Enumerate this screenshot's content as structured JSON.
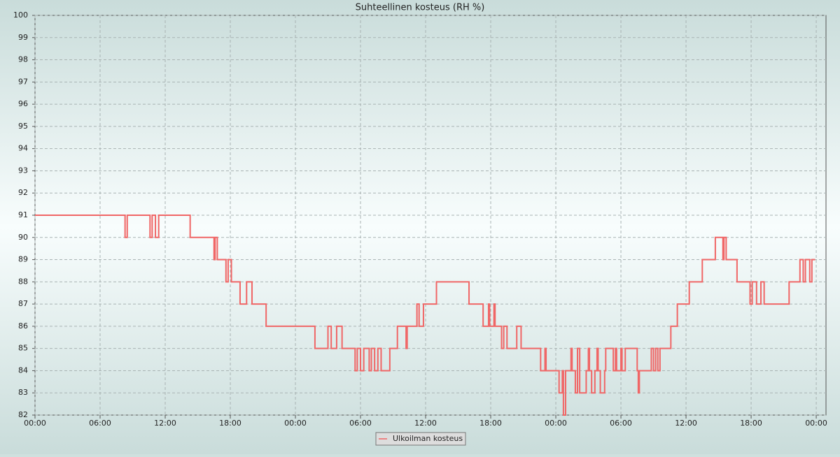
{
  "chart_data": {
    "type": "line",
    "step": true,
    "title": "Suhteellinen kosteus (RH %)",
    "x": [
      0.0,
      8.3,
      8.5,
      10.6,
      10.8,
      11.1,
      11.4,
      14.3,
      16.5,
      16.6,
      16.8,
      17.6,
      17.8,
      18.1,
      18.9,
      19.5,
      20.0,
      21.3,
      25.8,
      27.0,
      27.3,
      27.8,
      28.3,
      29.5,
      29.7,
      30.0,
      30.3,
      30.8,
      31.0,
      31.3,
      31.6,
      31.9,
      32.7,
      33.4,
      34.2,
      34.3,
      35.2,
      35.4,
      35.8,
      37.0,
      40.0,
      41.3,
      41.8,
      41.9,
      42.3,
      42.4,
      43.0,
      43.2,
      43.5,
      44.4,
      44.8,
      46.6,
      47.0,
      47.1,
      48.3,
      48.6,
      48.7,
      48.9,
      49.4,
      49.5,
      49.8,
      50.0,
      50.2,
      50.8,
      51.0,
      51.1,
      51.3,
      51.6,
      51.8,
      51.9,
      52.1,
      52.5,
      52.6,
      53.3,
      53.5,
      53.6,
      54.0,
      54.1,
      54.4,
      55.5,
      55.6,
      55.7,
      56.8,
      57.0,
      57.2,
      57.4,
      57.6,
      58.6,
      59.2,
      60.3,
      61.5,
      62.7,
      63.4,
      63.5,
      63.7,
      64.7,
      65.9,
      66.1,
      66.5,
      66.9,
      67.2,
      69.5,
      70.5,
      70.8,
      71.0,
      71.4,
      71.6,
      71.9
    ],
    "series": [
      {
        "name": "Ulkoilman kosteus",
        "color": "#f06666",
        "values": [
          91,
          90,
          91,
          90,
          91,
          90,
          91,
          90,
          89,
          90,
          89,
          88,
          89,
          88,
          87,
          88,
          87,
          86,
          85,
          86,
          85,
          86,
          85,
          84,
          85,
          84,
          85,
          84,
          85,
          84,
          85,
          84,
          85,
          86,
          85,
          86,
          87,
          86,
          87,
          88,
          87,
          86,
          87,
          86,
          87,
          86,
          85,
          86,
          85,
          86,
          85,
          84,
          85,
          84,
          83,
          84,
          82,
          84,
          85,
          84,
          83,
          85,
          83,
          84,
          85,
          84,
          83,
          84,
          85,
          84,
          83,
          84,
          85,
          84,
          85,
          84,
          85,
          84,
          85,
          84,
          83,
          84,
          85,
          84,
          85,
          84,
          85,
          86,
          87,
          88,
          89,
          90,
          89,
          90,
          89,
          88,
          87,
          88,
          87,
          88,
          87,
          88,
          89,
          88,
          89,
          88,
          89,
          89
        ]
      }
    ],
    "xlim": [
      0,
      72.9
    ],
    "xticks": [
      {
        "value": 0,
        "label": "00:00"
      },
      {
        "value": 6,
        "label": "06:00"
      },
      {
        "value": 12,
        "label": "12:00"
      },
      {
        "value": 18,
        "label": "18:00"
      },
      {
        "value": 24,
        "label": "00:00"
      },
      {
        "value": 30,
        "label": "06:00"
      },
      {
        "value": 36,
        "label": "12:00"
      },
      {
        "value": 42,
        "label": "18:00"
      },
      {
        "value": 48,
        "label": "00:00"
      },
      {
        "value": 54,
        "label": "06:00"
      },
      {
        "value": 60,
        "label": "12:00"
      },
      {
        "value": 66,
        "label": "18:00"
      },
      {
        "value": 72,
        "label": "00:00"
      }
    ],
    "ylim": [
      82,
      100
    ],
    "yticks": [
      82,
      83,
      84,
      85,
      86,
      87,
      88,
      89,
      90,
      91,
      92,
      93,
      94,
      95,
      96,
      97,
      98,
      99,
      100
    ],
    "grid": true,
    "legend": "bottom"
  }
}
